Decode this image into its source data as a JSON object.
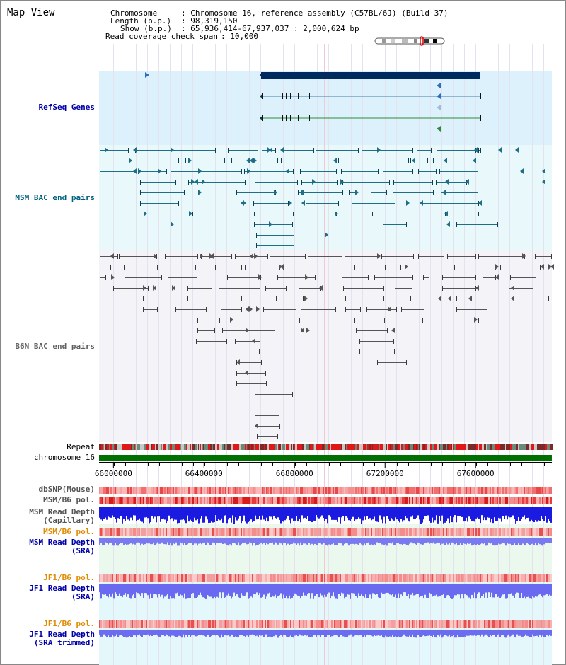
{
  "page_title": "Map View",
  "info": {
    "chromosome_key": "Chromosome",
    "chromosome_value": ": Chromosome 16, reference assembly (C57BL/6J) (Build 37)",
    "length_key": "Length (b.p.)",
    "length_value": ": 98,319,150",
    "show_key": "Show (b.p.)",
    "show_value": ": 65,936,414-67,937,037 : 2,000,624 bp",
    "coverage_key": "Read coverage check span",
    "coverage_value": ": 10,000"
  },
  "tracks": {
    "refseq": {
      "label": "RefSeq Genes",
      "color": "#0000aa"
    },
    "msm_bac": {
      "label": "MSM BAC end pairs",
      "color": "#006080"
    },
    "b6n_bac": {
      "label": "B6N BAC end pairs",
      "color": "#606060"
    },
    "repeat": {
      "label": "Repeat"
    },
    "chromosome": {
      "label": "chromosome 16"
    },
    "dbsnp": {
      "label": "dbSNP(Mouse)"
    },
    "msm_b6_pol_1": {
      "label": "MSM/B6 pol."
    },
    "msm_read_depth_cap_1": {
      "label": "MSM Read Depth"
    },
    "msm_read_depth_cap_2": {
      "label": "(Capillary)"
    },
    "msm_b6_pol_2": {
      "label": "MSM/B6 pol.",
      "color": "#e08a00"
    },
    "msm_read_depth_sra_1": {
      "label": "MSM Read Depth",
      "color": "#0000aa"
    },
    "msm_read_depth_sra_2": {
      "label": "(SRA)",
      "color": "#0000aa"
    },
    "jf1_b6_pol_1": {
      "label": "JF1/B6 pol.",
      "color": "#e08a00"
    },
    "jf1_read_depth_sra_1": {
      "label": "JF1 Read Depth",
      "color": "#0000aa"
    },
    "jf1_read_depth_sra_2": {
      "label": "(SRA)",
      "color": "#0000aa"
    },
    "jf1_b6_pol_2": {
      "label": "JF1/B6 pol.",
      "color": "#e08a00"
    },
    "jf1_read_depth_trim_1": {
      "label": "JF1 Read Depth",
      "color": "#0000aa"
    },
    "jf1_read_depth_trim_2": {
      "label": "(SRA trimmed)",
      "color": "#0000aa"
    }
  },
  "scale": {
    "start_bp": 65936414,
    "end_bp": 67937037,
    "ticks": [
      "66000000",
      "66400000",
      "66800000",
      "67200000",
      "67600000"
    ]
  }
}
